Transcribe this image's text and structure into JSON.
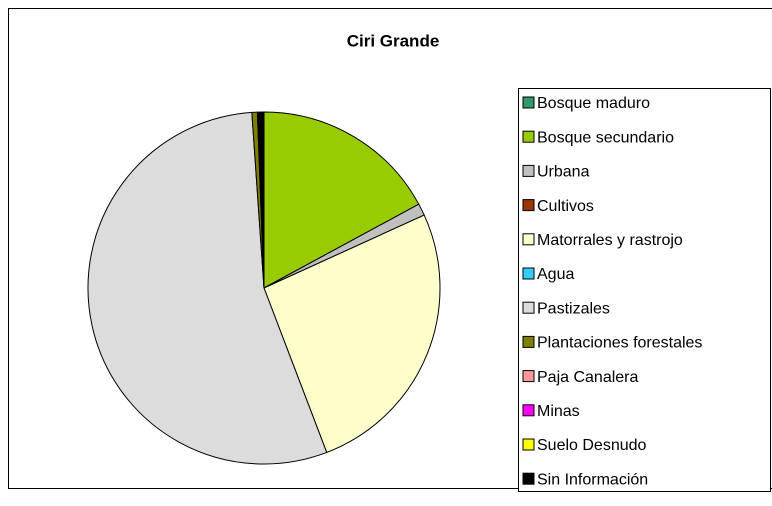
{
  "chart_data": {
    "type": "pie",
    "title": "Ciri Grande",
    "categories": [
      "Bosque maduro",
      "Bosque secundario",
      "Urbana",
      "Cultivos",
      "Matorrales y rastrojo",
      "Agua",
      "Pastizales",
      "Plantaciones forestales",
      "Paja Canalera",
      "Minas",
      "Suelo Desnudo",
      "Sin Información"
    ],
    "values": [
      0,
      17.1,
      1.1,
      0,
      26,
      0,
      54.7,
      0.5,
      0,
      0,
      0,
      0.6
    ],
    "colors": [
      "#339966",
      "#99cc00",
      "#c0c0c0",
      "#993300",
      "#ffffcc",
      "#33ccff",
      "#dcdcdc",
      "#808000",
      "#ff9999",
      "#ff00ff",
      "#ffff00",
      "#000000"
    ],
    "legend": "right"
  }
}
